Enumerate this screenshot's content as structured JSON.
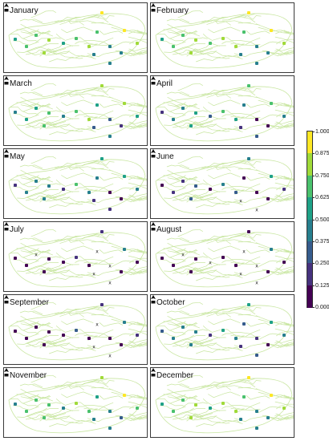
{
  "panels": [
    {
      "title": "January"
    },
    {
      "title": "February"
    },
    {
      "title": "March"
    },
    {
      "title": "April"
    },
    {
      "title": "May"
    },
    {
      "title": "June"
    },
    {
      "title": "July"
    },
    {
      "title": "August"
    },
    {
      "title": "September"
    },
    {
      "title": "October"
    },
    {
      "title": "November"
    },
    {
      "title": "December"
    }
  ],
  "colorbar": {
    "ticks": [
      "1.000",
      "0.875",
      "0.750",
      "0.625",
      "0.500",
      "0.375",
      "0.250",
      "0.125",
      "0.000"
    ],
    "colors": [
      "#fde725",
      "#a0da39",
      "#4ac16d",
      "#1fa187",
      "#277f8e",
      "#365c8d",
      "#46327e",
      "#440154"
    ]
  },
  "map": {
    "river_color": "#c8e6a0",
    "missing_marker": "x"
  },
  "station_values": [
    [
      0.9,
      0.7,
      0.6,
      0.8,
      0.75,
      0.7,
      0.9,
      0.6,
      0.8,
      0.5,
      0.4,
      0.7,
      0.5,
      0.8,
      0.5,
      0.8
    ],
    [
      0.9,
      0.7,
      0.6,
      0.8,
      0.8,
      0.7,
      0.9,
      0.7,
      0.8,
      0.5,
      0.4,
      0.7,
      0.5,
      0.8,
      0.5,
      0.8
    ],
    [
      0.8,
      0.6,
      0.5,
      0.7,
      0.7,
      0.6,
      0.8,
      0.5,
      0.8,
      0.3,
      0.2,
      0.6,
      0.3,
      0.7,
      0.4,
      0.6
    ],
    [
      0.7,
      0.5,
      0.2,
      0.6,
      0.7,
      0.5,
      0.7,
      0.3,
      0.6,
      0.1,
      0.1,
      0.5,
      0.2,
      0.6,
      0.3,
      0.5
    ],
    [
      0.6,
      0.5,
      0.2,
      0.5,
      0.7,
      0.4,
      0.6,
      0.2,
      0.5,
      0.1,
      0.0,
      0.5,
      0.2,
      0.5,
      0.2,
      0.4
    ],
    [
      0.4,
      0.2,
      0.0,
      0.3,
      0.5,
      0.1,
      0.6,
      0.0,
      0.3,
      0.0,
      0.0,
      0.2,
      -1,
      0.3,
      -1,
      0.2
    ],
    [
      0.2,
      -1,
      0.0,
      0.1,
      0.2,
      -1,
      0.5,
      0.0,
      0.1,
      -1,
      0.0,
      0.1,
      -1,
      0.1,
      -1,
      0.1
    ],
    [
      0.1,
      -1,
      0.0,
      0.1,
      0.1,
      -1,
      0.4,
      -1,
      0.1,
      -1,
      0.0,
      0.0,
      -1,
      0.0,
      -1,
      0.1
    ],
    [
      0.2,
      0.1,
      0.0,
      0.1,
      0.3,
      -1,
      0.4,
      0.0,
      0.1,
      0.0,
      0.0,
      0.1,
      -1,
      0.1,
      -1,
      0.2
    ],
    [
      0.6,
      0.5,
      0.3,
      0.5,
      0.6,
      0.3,
      0.6,
      0.2,
      0.5,
      0.2,
      0.1,
      0.5,
      0.2,
      0.5,
      0.3,
      0.5
    ],
    [
      0.8,
      0.7,
      0.5,
      0.7,
      0.8,
      0.6,
      0.9,
      0.5,
      0.7,
      0.4,
      0.3,
      0.7,
      0.4,
      0.7,
      0.5,
      0.7
    ],
    [
      0.9,
      0.7,
      0.6,
      0.8,
      0.8,
      0.7,
      0.9,
      0.6,
      0.8,
      0.5,
      0.4,
      0.7,
      0.5,
      0.8,
      0.5,
      0.8
    ]
  ]
}
